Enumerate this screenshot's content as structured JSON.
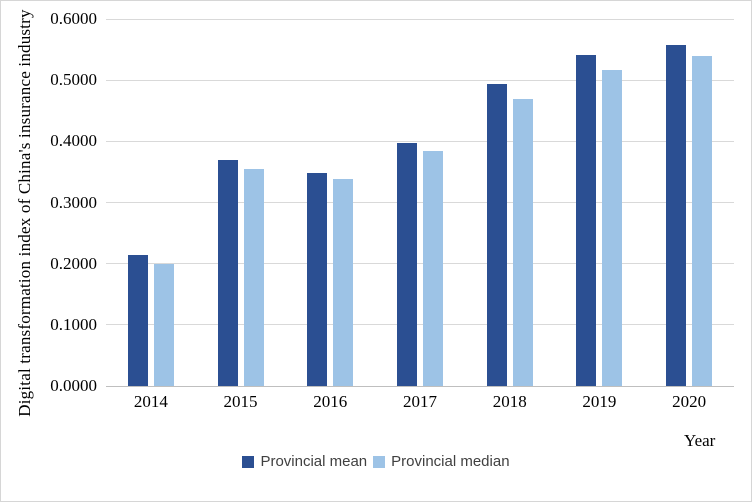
{
  "chart_data": {
    "type": "bar",
    "title": "",
    "xlabel": "Year",
    "ylabel": "Digital transformation index of China's insurance industry",
    "categories": [
      "2014",
      "2015",
      "2016",
      "2017",
      "2018",
      "2019",
      "2020"
    ],
    "series": [
      {
        "name": "Provincial mean",
        "color": "#2b4f92",
        "values": [
          0.214,
          0.369,
          0.349,
          0.397,
          0.493,
          0.541,
          0.557
        ]
      },
      {
        "name": "Provincial median",
        "color": "#9dc3e6",
        "values": [
          0.2,
          0.354,
          0.339,
          0.384,
          0.47,
          0.517,
          0.539
        ]
      }
    ],
    "ylim": [
      0,
      0.6
    ],
    "ytick_labels": [
      "0.0000",
      "0.1000",
      "0.2000",
      "0.3000",
      "0.4000",
      "0.5000",
      "0.6000"
    ],
    "grid": true,
    "legend_position": "bottom-center"
  },
  "colors": {
    "gridline": "#d9d9d9",
    "baseline": "#bfbfbf",
    "figure_border": "#d6d6d6",
    "axis_text": "#000000",
    "legend_text": "#404040"
  }
}
